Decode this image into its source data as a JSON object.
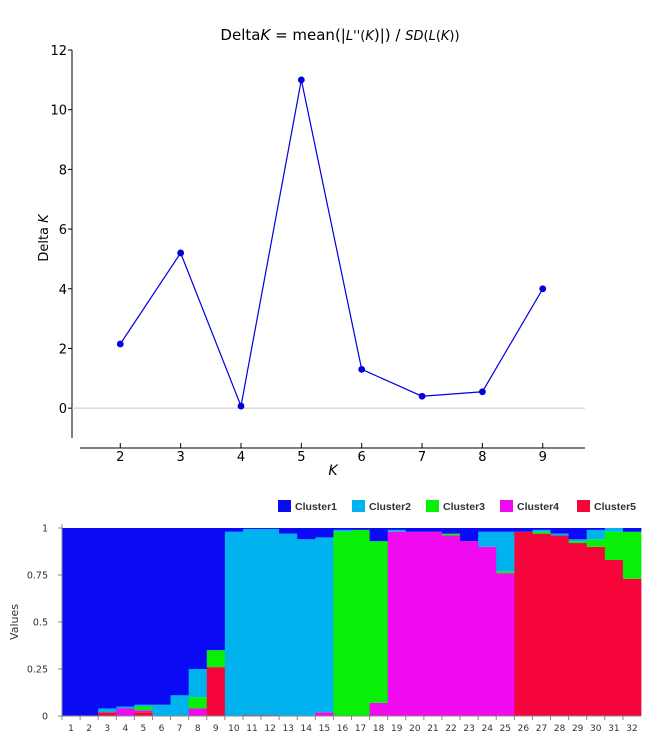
{
  "chart_data": [
    {
      "type": "line",
      "title": "DeltaK = mean(|L''(K)|) / SD(L(K))",
      "title_parts": {
        "a": "Delta",
        "b": "K",
        "c": " = mean(|",
        "d": "L''",
        "e": "(",
        "f": "K",
        "g": ")|) / ",
        "h": "SD",
        "i": "(",
        "j": "L",
        "k": "(",
        "l": "K",
        "m": "))"
      },
      "xlabel": "K",
      "ylabel": {
        "prefix": "Delta ",
        "italic": "K"
      },
      "x": [
        2,
        3,
        4,
        5,
        6,
        7,
        8,
        9
      ],
      "y": [
        2.15,
        5.2,
        0.07,
        11.0,
        1.3,
        0.4,
        0.55,
        4.0
      ],
      "xticks": [
        "2",
        "3",
        "4",
        "5",
        "6",
        "7",
        "8",
        "9"
      ],
      "yticks": [
        "0",
        "2",
        "4",
        "6",
        "8",
        "10",
        "12"
      ],
      "xlim": [
        1.2,
        9.7
      ],
      "ylim": [
        -1,
        12
      ],
      "zero_line": true,
      "color": "#0000dd"
    },
    {
      "type": "bar",
      "stacked": true,
      "ylabel": "Values",
      "ylim": [
        0,
        1
      ],
      "yticks": [
        "0",
        "0.25",
        "0.5",
        "0.75",
        "1"
      ],
      "legend_position": "top-right",
      "categories": [
        "1",
        "2",
        "3",
        "4",
        "5",
        "6",
        "7",
        "8",
        "9",
        "10",
        "11",
        "12",
        "13",
        "14",
        "15",
        "16",
        "17",
        "18",
        "19",
        "20",
        "21",
        "22",
        "23",
        "24",
        "25",
        "26",
        "27",
        "28",
        "29",
        "30",
        "31",
        "32"
      ],
      "series": [
        {
          "name": "Cluster5",
          "color": "#f5053a",
          "values": [
            0,
            0,
            0.02,
            0,
            0.02,
            0,
            0,
            0,
            0.26,
            0,
            0.005,
            0.005,
            0,
            0,
            0,
            0,
            0,
            0,
            0,
            0,
            0,
            0,
            0,
            0,
            0,
            0.98,
            0.97,
            0.96,
            0.92,
            0.9,
            0.83,
            0.73
          ]
        },
        {
          "name": "Cluster4",
          "color": "#f00af0",
          "values": [
            0,
            0,
            0,
            0.04,
            0.01,
            0,
            0,
            0.04,
            0,
            0,
            0,
            0,
            0,
            0,
            0.02,
            0,
            0,
            0.07,
            0.98,
            0.98,
            0.98,
            0.96,
            0.93,
            0.9,
            0.76,
            0,
            0,
            0,
            0,
            0,
            0,
            0
          ]
        },
        {
          "name": "Cluster3",
          "color": "#08f008",
          "values": [
            0,
            0,
            0,
            0,
            0.02,
            0,
            0,
            0.06,
            0.09,
            0,
            0,
            0,
            0,
            0,
            0,
            0.98,
            0.99,
            0.86,
            0,
            0,
            0,
            0.01,
            0,
            0,
            0.01,
            0,
            0.01,
            0,
            0.01,
            0.04,
            0.15,
            0.25
          ]
        },
        {
          "name": "Cluster2",
          "color": "#00b3ee",
          "values": [
            0,
            0,
            0.02,
            0.01,
            0.01,
            0.06,
            0.11,
            0.15,
            0,
            0.98,
            0.99,
            0.99,
            0.97,
            0.94,
            0.93,
            0.01,
            0,
            0,
            0.01,
            0,
            0,
            0,
            0,
            0.08,
            0.21,
            0,
            0.01,
            0.01,
            0.01,
            0.05,
            0.02,
            0
          ]
        },
        {
          "name": "Cluster1",
          "color": "#0a0af5",
          "values": [
            1,
            1,
            0.96,
            0.95,
            0.94,
            0.94,
            0.89,
            0.75,
            0.65,
            0.02,
            0.005,
            0.005,
            0.03,
            0.06,
            0.05,
            0.01,
            0.01,
            0.07,
            0.01,
            0.02,
            0.02,
            0.03,
            0.07,
            0.02,
            0.02,
            0.02,
            0.01,
            0.03,
            0.06,
            0.01,
            0,
            0.02
          ]
        }
      ],
      "legend_order": [
        "Cluster1",
        "Cluster2",
        "Cluster3",
        "Cluster4",
        "Cluster5"
      ]
    }
  ]
}
